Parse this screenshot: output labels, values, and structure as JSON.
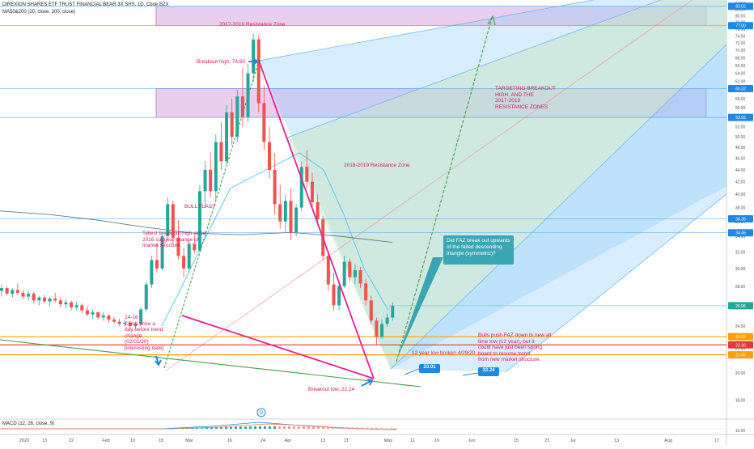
{
  "header": {
    "symbol_line": "DIREXION SHARES ETF TRUST FINANCIAL BEAR 3X SHS, 1D, Cboe BZX",
    "ma_line": "MA50&200 (20, close, 200, close)"
  },
  "macd": {
    "label": "MACD (12, 26, close, 9)"
  },
  "colors": {
    "up": "#26a69a",
    "down": "#ef5350",
    "green_line": "#43a047",
    "magenta_line": "#e91e9b",
    "zone_fill": "#ce93d8",
    "channel_blue": "#90caf9",
    "channel_green": "#c8e6c9",
    "annotation_red": "#d81b60"
  },
  "annotations": {
    "zone_top": "2017-2019 Resistance Zone",
    "zone_mid": "2018-2019 Resistance Zone",
    "breakout_high": "Breakout high, 74.60",
    "bull_flag": "BULL FLAG?",
    "tallest": "Tallest break out high since\n2016 suggest change of\nmarket structure.",
    "feb24": "24-16\nClose price a\nday before trend\nchange\n(02/02/20)\n[interesting date]",
    "targeting": "TARGETING BREAKOUT\nHIGH, AND THE\n2017-2019\nRESISTANCE ZONES",
    "low_broken": "12 year low broken 4/29/20",
    "bulls_push": "Bulls push FAZ down to new all\ntime low (12 year), but it\ncould have just been spring\nboard to resume trend\nfrom new market structure.",
    "breakout_low": "Breakout low, 22.24",
    "callout": "Did FAZ break out upwards\nof the failed descending\ntriangle (symmetric)?",
    "badge_1": "23.01",
    "badge_2": "22.24"
  },
  "chart_data": {
    "type": "candlestick",
    "y_scale": "log",
    "ylim": [
      15,
      85
    ],
    "y_ticks": [
      84,
      82,
      80,
      78,
      76,
      74,
      72,
      70,
      68,
      66,
      64,
      62,
      60,
      58,
      56,
      54,
      52,
      50,
      48,
      46,
      44,
      42,
      40,
      38,
      36,
      34,
      32,
      30,
      28,
      26,
      24,
      22,
      20,
      18,
      16
    ],
    "x_ticks": [
      "2020",
      "13",
      "22",
      "Feb",
      "10",
      "18",
      "Mar",
      "16",
      "24",
      "Apr",
      "13",
      "21",
      "May",
      "11",
      "19",
      "Jun",
      "15",
      "23",
      "Jul",
      "13",
      "Aug",
      "17"
    ],
    "price_tags": [
      {
        "value": "83.02",
        "color": "#1e88e5"
      },
      {
        "value": "77.00",
        "color": "#1e88e5"
      },
      {
        "value": "60.32",
        "color": "#1e88e5"
      },
      {
        "value": "53.93",
        "color": "#1e88e5"
      },
      {
        "value": "36.38",
        "color": "#1e88e5"
      },
      {
        "value": "34.46",
        "color": "#1e88e5"
      },
      {
        "value": "25.96",
        "color": "#26a69a"
      },
      {
        "value": "23.02",
        "color": "#ffa000"
      },
      {
        "value": "22.30",
        "color": "#e53935"
      },
      {
        "value": "21.45",
        "color": "#ffa000"
      }
    ],
    "series": [
      {
        "name": "ohlc",
        "values": [
          [
            27.5,
            28.2,
            26.9,
            27.8
          ],
          [
            27.8,
            28.0,
            27.0,
            27.2
          ],
          [
            27.2,
            27.8,
            26.8,
            27.6
          ],
          [
            27.6,
            28.3,
            27.1,
            27.3
          ],
          [
            27.3,
            27.6,
            26.6,
            26.9
          ],
          [
            26.9,
            27.5,
            26.5,
            27.2
          ],
          [
            27.2,
            27.4,
            26.2,
            26.5
          ],
          [
            26.5,
            27.0,
            26.0,
            26.8
          ],
          [
            26.8,
            27.1,
            26.2,
            26.4
          ],
          [
            26.4,
            26.9,
            25.9,
            26.7
          ],
          [
            26.7,
            27.3,
            26.3,
            26.5
          ],
          [
            26.5,
            26.8,
            25.8,
            26.1
          ],
          [
            26.1,
            26.6,
            25.7,
            26.3
          ],
          [
            26.3,
            26.5,
            25.5,
            25.8
          ],
          [
            25.8,
            26.4,
            25.5,
            26.0
          ],
          [
            26.0,
            26.2,
            25.2,
            25.5
          ],
          [
            25.5,
            25.9,
            24.9,
            25.1
          ],
          [
            25.1,
            25.6,
            24.7,
            25.3
          ],
          [
            25.3,
            25.4,
            24.6,
            24.8
          ],
          [
            24.8,
            25.3,
            24.5,
            25.0
          ],
          [
            25.0,
            25.1,
            24.3,
            24.6
          ],
          [
            24.6,
            24.9,
            24.2,
            24.4
          ],
          [
            24.4,
            24.7,
            24.0,
            24.2
          ],
          [
            24.2,
            24.6,
            23.9,
            24.3
          ],
          [
            24.3,
            24.5,
            23.8,
            24.0
          ],
          [
            24.0,
            24.4,
            23.8,
            24.2
          ],
          [
            24.2,
            25.8,
            24.1,
            25.6
          ],
          [
            25.6,
            28.5,
            25.4,
            28.2
          ],
          [
            28.2,
            31.5,
            27.8,
            31.0
          ],
          [
            31.0,
            33.0,
            29.5,
            30.0
          ],
          [
            30.0,
            34.5,
            29.8,
            34.0
          ],
          [
            34.0,
            39.5,
            33.5,
            38.5
          ],
          [
            38.5,
            39.0,
            33.0,
            33.8
          ],
          [
            33.8,
            36.2,
            31.0,
            31.5
          ],
          [
            31.5,
            32.5,
            29.0,
            30.0
          ],
          [
            30.0,
            33.5,
            29.5,
            33.0
          ],
          [
            33.0,
            34.2,
            31.8,
            32.2
          ],
          [
            32.2,
            41.5,
            32.0,
            40.5
          ],
          [
            40.5,
            45.5,
            38.0,
            44.0
          ],
          [
            44.0,
            47.0,
            39.5,
            40.5
          ],
          [
            40.5,
            50.5,
            39.0,
            49.0
          ],
          [
            49.0,
            53.0,
            44.0,
            45.5
          ],
          [
            45.5,
            56.5,
            45.0,
            55.0
          ],
          [
            55.0,
            58.0,
            48.5,
            50.0
          ],
          [
            50.0,
            60.0,
            49.0,
            58.5
          ],
          [
            58.5,
            65.5,
            52.0,
            54.0
          ],
          [
            54.0,
            66.5,
            53.0,
            64.0
          ],
          [
            64.0,
            74.6,
            62.0,
            73.0
          ],
          [
            73.0,
            74.0,
            55.0,
            57.0
          ],
          [
            57.0,
            61.0,
            47.5,
            49.0
          ],
          [
            49.0,
            52.0,
            42.5,
            44.0
          ],
          [
            44.0,
            47.0,
            37.0,
            38.5
          ],
          [
            38.5,
            41.5,
            35.0,
            36.0
          ],
          [
            36.0,
            40.0,
            34.5,
            39.0
          ],
          [
            39.0,
            41.0,
            33.5,
            34.5
          ],
          [
            34.5,
            38.5,
            34.0,
            38.0
          ],
          [
            38.0,
            45.5,
            37.5,
            44.5
          ],
          [
            44.5,
            47.5,
            41.0,
            42.0
          ],
          [
            42.0,
            43.5,
            38.0,
            38.8
          ],
          [
            38.8,
            40.0,
            35.5,
            36.3
          ],
          [
            36.3,
            36.8,
            31.0,
            31.5
          ],
          [
            31.5,
            32.0,
            27.5,
            28.2
          ],
          [
            28.2,
            29.5,
            25.5,
            26.0
          ],
          [
            26.0,
            28.5,
            25.5,
            28.0
          ],
          [
            28.0,
            31.5,
            27.8,
            30.8
          ],
          [
            30.8,
            31.2,
            28.5,
            29.0
          ],
          [
            29.0,
            30.5,
            28.2,
            29.8
          ],
          [
            29.8,
            30.2,
            27.8,
            28.3
          ],
          [
            28.3,
            28.8,
            26.0,
            26.5
          ],
          [
            26.5,
            27.0,
            24.2,
            24.5
          ],
          [
            24.5,
            24.8,
            22.24,
            23.0
          ],
          [
            23.0,
            24.6,
            22.8,
            24.2
          ],
          [
            24.2,
            25.2,
            23.9,
            24.8
          ],
          [
            24.8,
            26.3,
            24.5,
            25.96
          ]
        ]
      },
      {
        "name": "MA 20",
        "values": [
          24.0,
          28.0,
          33.0,
          41.0,
          47.0,
          44.0,
          37.0,
          30.0,
          25.5
        ]
      },
      {
        "name": "MA 200",
        "values": [
          37.5,
          37.0,
          36.2,
          35.2,
          34.4,
          34.2,
          34.5,
          34.0,
          33.2
        ]
      }
    ],
    "zones": [
      {
        "name": "2017-2019 Resistance Zone",
        "low": 77.0,
        "high": 83.02
      },
      {
        "name": "2018-2019 Resistance Zone",
        "low": 53.93,
        "high": 60.32
      }
    ],
    "levels": [
      83.02,
      77.0,
      60.32,
      53.93,
      36.38,
      34.46,
      25.96,
      23.02,
      22.3,
      21.45
    ]
  }
}
